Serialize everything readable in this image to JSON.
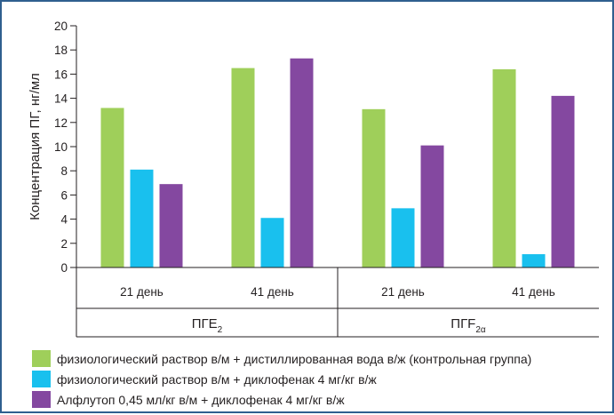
{
  "chart_data": {
    "type": "bar",
    "ylabel": "Концентрация ПГ, нг/мл",
    "ylim": [
      0,
      20
    ],
    "yticks": [
      0,
      2,
      4,
      6,
      8,
      10,
      12,
      14,
      16,
      18,
      20
    ],
    "grid": "horizontal",
    "groups": [
      {
        "name": "ПГЕ",
        "subscript": "2",
        "categories": [
          "21 день",
          "41 день"
        ]
      },
      {
        "name": "ПГF",
        "subscript": "2α",
        "categories": [
          "21 день",
          "41 день"
        ]
      }
    ],
    "categories": [
      "ПГЕ2 21 день",
      "ПГЕ2 41 день",
      "ПГF2α 21 день",
      "ПГF2α 41 день"
    ],
    "series": [
      {
        "name": "физиологический раствор в/м + дистиллированная вода в/ж (контрольная группа)",
        "color": "#9fcf5a",
        "values": [
          13.2,
          16.5,
          13.1,
          16.4
        ]
      },
      {
        "name": "физиологический раствор в/м + диклофенак 4 мг/кг в/ж",
        "color": "#19c0ee",
        "values": [
          8.1,
          4.1,
          4.9,
          1.1
        ]
      },
      {
        "name": "Алфлутоп 0,45 мл/кг в/м + диклофенак 4 мг/кг в/ж",
        "color": "#8448a0",
        "values": [
          6.9,
          17.3,
          10.1,
          14.2
        ]
      }
    ],
    "legend_position": "bottom"
  }
}
